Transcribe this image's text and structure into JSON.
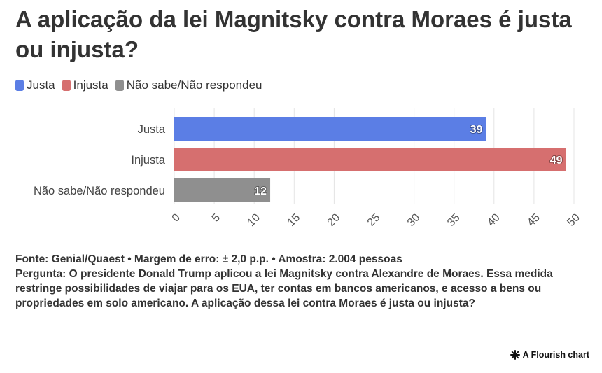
{
  "title": "A aplicação da lei Magnitsky contra Moraes é justa ou injusta?",
  "legend": [
    {
      "label": "Justa",
      "color": "#5b7ee5"
    },
    {
      "label": "Injusta",
      "color": "#d66f6f"
    },
    {
      "label": "Não sabe/Não respondeu",
      "color": "#8f8f8f"
    }
  ],
  "chart_data": {
    "type": "bar",
    "orientation": "horizontal",
    "categories": [
      "Justa",
      "Injusta",
      "Não sabe/Não respondeu"
    ],
    "values": [
      39,
      49,
      12
    ],
    "colors": [
      "#5b7ee5",
      "#d66f6f",
      "#8f8f8f"
    ],
    "xlim": [
      0,
      50
    ],
    "xticks": [
      "0",
      "5",
      "10",
      "15",
      "20",
      "25",
      "30",
      "35",
      "40",
      "45",
      "50"
    ],
    "grid": true,
    "legend_position": "top-left"
  },
  "footer": {
    "source": "Fonte: Genial/Quaest • Margem de erro: ± 2,0 p.p. • Amostra: 2.004 pessoas",
    "question": "Pergunta: O presidente Donald Trump aplicou a lei Magnitsky contra Alexandre de Moraes. Essa medida restringe possibilidades de viajar para os EUA, ter contas em bancos americanos, e acesso a bens ou propriedades em solo americano. A aplicação dessa lei contra Moraes é justa ou injusta?"
  },
  "credit": "A Flourish chart"
}
